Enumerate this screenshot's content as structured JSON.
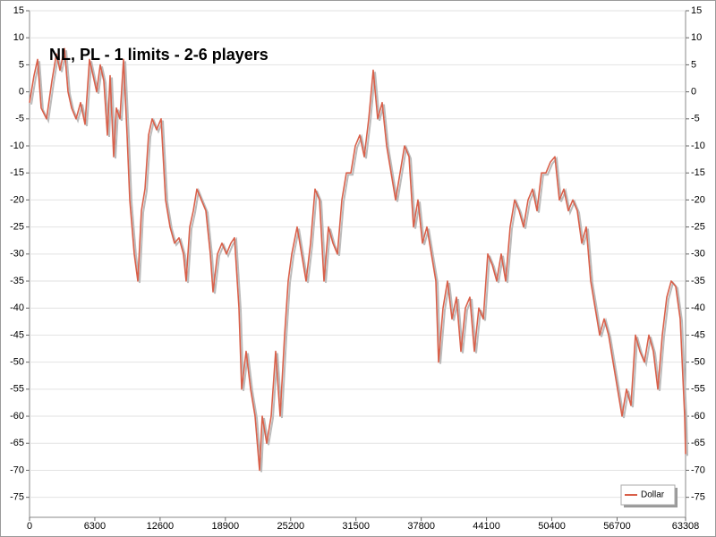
{
  "chart_data": {
    "type": "line",
    "title": "NL, PL  - 1 limits  - 2-6 players",
    "x": [
      0,
      432,
      777,
      1123,
      1641,
      2159,
      2591,
      2937,
      3368,
      3714,
      4059,
      4491,
      4923,
      5355,
      5787,
      6132,
      6478,
      6823,
      7169,
      7514,
      7773,
      8119,
      8378,
      8723,
      9069,
      9414,
      9673,
      10105,
      10451,
      10796,
      11142,
      11487,
      11833,
      12265,
      12696,
      13128,
      13560,
      13992,
      14424,
      14856,
      15115,
      15460,
      15806,
      16151,
      16583,
      17015,
      17447,
      17706,
      18138,
      18570,
      19001,
      19433,
      19779,
      20211,
      20470,
      20902,
      21333,
      21765,
      22197,
      22456,
      22888,
      23320,
      23752,
      24184,
      24615,
      24961,
      25306,
      25825,
      26256,
      26688,
      27120,
      27552,
      27984,
      28416,
      28848,
      29279,
      29711,
      30143,
      30575,
      31007,
      31439,
      31871,
      32302,
      32734,
      33166,
      33598,
      34030,
      34462,
      34893,
      35325,
      35757,
      36189,
      36621,
      37053,
      37485,
      37916,
      38348,
      38780,
      39212,
      39471,
      39903,
      40335,
      40767,
      41198,
      41630,
      42062,
      42494,
      42926,
      43358,
      43790,
      44221,
      44653,
      45085,
      45517,
      45949,
      46381,
      46813,
      47244,
      47676,
      48108,
      48540,
      48972,
      49404,
      49836,
      50267,
      50699,
      51131,
      51563,
      51995,
      52427,
      52858,
      53290,
      53722,
      54154,
      54586,
      55018,
      55450,
      55881,
      56313,
      56745,
      57177,
      57609,
      58041,
      58472,
      58904,
      59336,
      59768,
      60200,
      60632,
      61064,
      61495,
      61927,
      62359,
      62791,
      63223,
      63308
    ],
    "series": [
      {
        "name": "Dollar",
        "color": "#d9604a",
        "values": [
          -2,
          3,
          6,
          -3,
          -5,
          2,
          7,
          4,
          8,
          0,
          -3,
          -5,
          -2,
          -6,
          6,
          3,
          0,
          5,
          2,
          -8,
          3,
          -12,
          -3,
          -5,
          6,
          -8,
          -20,
          -30,
          -35,
          -22,
          -18,
          -8,
          -5,
          -7,
          -5,
          -20,
          -25,
          -28,
          -27,
          -30,
          -35,
          -25,
          -22,
          -18,
          -20,
          -22,
          -30,
          -37,
          -30,
          -28,
          -30,
          -28,
          -27,
          -40,
          -55,
          -48,
          -55,
          -60,
          -70,
          -60,
          -65,
          -60,
          -48,
          -60,
          -45,
          -35,
          -30,
          -25,
          -30,
          -35,
          -28,
          -18,
          -20,
          -35,
          -25,
          -28,
          -30,
          -20,
          -15,
          -15,
          -10,
          -8,
          -12,
          -5,
          4,
          -5,
          -2,
          -10,
          -15,
          -20,
          -15,
          -10,
          -12,
          -25,
          -20,
          -28,
          -25,
          -30,
          -35,
          -50,
          -40,
          -35,
          -42,
          -38,
          -48,
          -40,
          -38,
          -48,
          -40,
          -42,
          -30,
          -32,
          -35,
          -30,
          -35,
          -25,
          -20,
          -22,
          -25,
          -20,
          -18,
          -22,
          -15,
          -15,
          -13,
          -12,
          -20,
          -18,
          -22,
          -20,
          -22,
          -28,
          -25,
          -35,
          -40,
          -45,
          -42,
          -45,
          -50,
          -55,
          -60,
          -55,
          -58,
          -45,
          -48,
          -50,
          -45,
          -48,
          -55,
          -45,
          -38,
          -35,
          -36,
          -42,
          -60,
          -67
        ]
      }
    ],
    "xlim": [
      0,
      63308
    ],
    "xticks": [
      0,
      6300,
      12600,
      18900,
      25200,
      31500,
      37800,
      44100,
      50400,
      56700,
      63308
    ],
    "ylim": [
      -78.7,
      15
    ],
    "yticks": [
      -75,
      -70,
      -65,
      -60,
      -55,
      -50,
      -45,
      -40,
      -35,
      -30,
      -25,
      -20,
      -15,
      -10,
      -5,
      0,
      5,
      10,
      15
    ],
    "grid": true,
    "legend": "lower right"
  }
}
